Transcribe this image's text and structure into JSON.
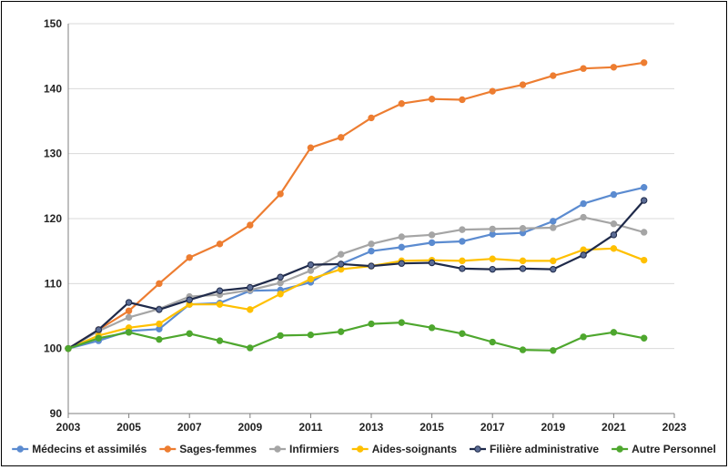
{
  "chart_data": {
    "type": "line",
    "title": "",
    "xlabel": "",
    "ylabel": "",
    "x": [
      2004,
      2005,
      2006,
      2007,
      2008,
      2009,
      2010,
      2011,
      2012,
      2013,
      2014,
      2015,
      2016,
      2017,
      2018,
      2019,
      2020,
      2021,
      2022
    ],
    "x_start": 2003,
    "xlim": [
      2003,
      2023
    ],
    "ylim": [
      90,
      150
    ],
    "x_ticks": [
      "2003",
      "2005",
      "2007",
      "2009",
      "2011",
      "2013",
      "2015",
      "2017",
      "2019",
      "2021",
      "2023"
    ],
    "y_ticks": [
      "90",
      "100",
      "110",
      "120",
      "130",
      "140",
      "150"
    ],
    "grid": "horizontal",
    "legend_position": "bottom",
    "series": [
      {
        "name": "Médecins et assimilés",
        "color": "#5B8BD0",
        "values": [
          101.2,
          102.7,
          103.0,
          106.8,
          107.0,
          108.9,
          109.0,
          110.2,
          113.0,
          115.0,
          115.6,
          116.3,
          116.5,
          117.6,
          117.8,
          119.6,
          122.3,
          123.7,
          124.8
        ]
      },
      {
        "name": "Sages-femmes",
        "color": "#ED7D31",
        "values": [
          102.9,
          105.8,
          110.0,
          114.0,
          116.1,
          119.0,
          123.8,
          130.9,
          132.5,
          135.5,
          137.7,
          138.4,
          138.3,
          139.6,
          140.6,
          142.0,
          143.1,
          143.3,
          144.0
        ]
      },
      {
        "name": "Infirmiers",
        "color": "#A5A5A5",
        "values": [
          102.7,
          104.8,
          106.1,
          108.0,
          108.3,
          109.0,
          110.1,
          112.0,
          114.5,
          116.1,
          117.2,
          117.5,
          118.3,
          118.4,
          118.5,
          118.6,
          120.2,
          119.2,
          117.9
        ]
      },
      {
        "name": "Aides-soignants",
        "color": "#FFC000",
        "values": [
          102.0,
          103.2,
          103.8,
          106.8,
          106.8,
          106.0,
          108.4,
          110.7,
          112.2,
          112.7,
          113.5,
          113.6,
          113.5,
          113.8,
          113.5,
          113.5,
          115.2,
          115.4,
          113.6
        ]
      },
      {
        "name": "Filière administrative",
        "color": "#1F2A4A",
        "values": [
          102.9,
          107.1,
          106.0,
          107.5,
          108.9,
          109.4,
          111.0,
          112.9,
          113.0,
          112.7,
          113.1,
          113.2,
          112.3,
          112.2,
          112.3,
          112.2,
          114.4,
          117.5,
          122.8
        ]
      },
      {
        "name": "Autre Personnel",
        "color": "#4EA72E",
        "values": [
          101.6,
          102.5,
          101.4,
          102.3,
          101.2,
          100.1,
          102.0,
          102.1,
          102.6,
          103.8,
          104.0,
          103.2,
          102.3,
          101.0,
          99.8,
          99.7,
          101.8,
          102.5,
          101.6
        ]
      }
    ],
    "series_start_value": 100
  }
}
